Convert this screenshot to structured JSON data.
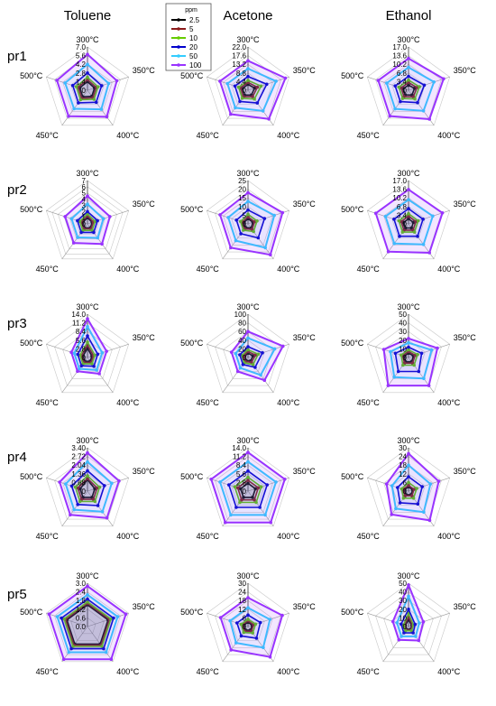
{
  "columns": [
    "Toluene",
    "Acetone",
    "Ethanol"
  ],
  "rows": [
    "pr1",
    "pr2",
    "pr3",
    "pr4",
    "pr5"
  ],
  "axes": [
    "300°C",
    "350°C",
    "400°C",
    "450°C",
    "500°C"
  ],
  "legend": {
    "title": "ppm",
    "entries": [
      "2.5",
      "5",
      "10",
      "20",
      "50",
      "100"
    ],
    "colors": [
      "#000000",
      "#8b1a1a",
      "#66cc00",
      "#0000cc",
      "#33ccff",
      "#9933ff"
    ]
  },
  "chart_data": [
    {
      "type": "radar",
      "row": "pr1",
      "column": "Toluene",
      "rmax": 7.0,
      "ticks": [
        "7.0",
        "5.6",
        "4.2",
        "2.8",
        "1.4",
        "0"
      ],
      "series": [
        {
          "name": "2.5",
          "values": [
            1.4,
            1.2,
            1.2,
            1.3,
            1.3
          ]
        },
        {
          "name": "5",
          "values": [
            1.7,
            1.5,
            1.5,
            1.6,
            1.6
          ]
        },
        {
          "name": "10",
          "values": [
            2.1,
            1.8,
            1.8,
            1.9,
            1.9
          ]
        },
        {
          "name": "20",
          "values": [
            2.8,
            2.4,
            2.4,
            2.5,
            2.5
          ]
        },
        {
          "name": "50",
          "values": [
            4.2,
            3.6,
            3.8,
            3.7,
            3.8
          ]
        },
        {
          "name": "100",
          "values": [
            5.8,
            5.0,
            5.3,
            5.2,
            5.2
          ]
        }
      ]
    },
    {
      "type": "radar",
      "row": "pr1",
      "column": "Acetone",
      "rmax": 22.0,
      "ticks": [
        "22.0",
        "17.6",
        "13.2",
        "8.8",
        "4.4",
        "0"
      ],
      "series": [
        {
          "name": "2.5",
          "values": [
            3.0,
            3.5,
            3.0,
            3.0,
            3.0
          ]
        },
        {
          "name": "5",
          "values": [
            4.0,
            5.0,
            4.0,
            4.0,
            4.0
          ]
        },
        {
          "name": "10",
          "values": [
            5.0,
            7.0,
            5.5,
            5.0,
            5.0
          ]
        },
        {
          "name": "20",
          "values": [
            7.0,
            10.0,
            8.0,
            7.0,
            7.0
          ]
        },
        {
          "name": "50",
          "values": [
            11.0,
            15.0,
            13.0,
            11.0,
            11.0
          ]
        },
        {
          "name": "100",
          "values": [
            15.0,
            20.0,
            18.0,
            15.0,
            15.0
          ]
        }
      ]
    },
    {
      "type": "radar",
      "row": "pr1",
      "column": "Ethanol",
      "rmax": 17.0,
      "ticks": [
        "17.0",
        "13.6",
        "10.2",
        "6.8",
        "3.4",
        "0"
      ],
      "series": [
        {
          "name": "2.5",
          "values": [
            2.0,
            2.5,
            2.3,
            2.2,
            2.2
          ]
        },
        {
          "name": "5",
          "values": [
            3.0,
            3.5,
            3.2,
            3.0,
            3.0
          ]
        },
        {
          "name": "10",
          "values": [
            4.0,
            4.5,
            4.2,
            4.0,
            4.0
          ]
        },
        {
          "name": "20",
          "values": [
            5.5,
            6.5,
            6.0,
            5.5,
            5.5
          ]
        },
        {
          "name": "50",
          "values": [
            9.0,
            10.5,
            10.0,
            9.0,
            9.0
          ]
        },
        {
          "name": "100",
          "values": [
            12.5,
            14.5,
            14.0,
            12.5,
            12.5
          ]
        }
      ]
    },
    {
      "type": "radar",
      "row": "pr2",
      "column": "Toluene",
      "rmax": 7,
      "ticks": [
        "7",
        "6",
        "5",
        "4",
        "3",
        "2",
        "1",
        "0"
      ],
      "series": [
        {
          "name": "2.5",
          "values": [
            1.0,
            0.8,
            0.8,
            0.8,
            0.8
          ]
        },
        {
          "name": "5",
          "values": [
            1.3,
            1.0,
            1.0,
            1.0,
            1.0
          ]
        },
        {
          "name": "10",
          "values": [
            1.6,
            1.3,
            1.3,
            1.3,
            1.3
          ]
        },
        {
          "name": "20",
          "values": [
            2.0,
            1.7,
            1.7,
            1.7,
            1.7
          ]
        },
        {
          "name": "50",
          "values": [
            3.2,
            2.7,
            2.8,
            2.7,
            2.7
          ]
        },
        {
          "name": "100",
          "values": [
            4.5,
            3.8,
            4.0,
            3.8,
            3.8
          ]
        }
      ]
    },
    {
      "type": "radar",
      "row": "pr2",
      "column": "Acetone",
      "rmax": 25,
      "ticks": [
        "25",
        "20",
        "15",
        "10",
        "5",
        "0"
      ],
      "series": [
        {
          "name": "2.5",
          "values": [
            3.0,
            3.0,
            3.0,
            2.5,
            2.5
          ]
        },
        {
          "name": "5",
          "values": [
            4.0,
            4.0,
            4.0,
            3.5,
            3.5
          ]
        },
        {
          "name": "10",
          "values": [
            5.5,
            5.5,
            5.5,
            4.5,
            4.5
          ]
        },
        {
          "name": "20",
          "values": [
            8.0,
            10.0,
            10.0,
            7.0,
            7.0
          ]
        },
        {
          "name": "50",
          "values": [
            13.0,
            16.0,
            17.0,
            12.0,
            12.0
          ]
        },
        {
          "name": "100",
          "values": [
            18.0,
            21.0,
            22.0,
            17.0,
            17.0
          ]
        }
      ]
    },
    {
      "type": "radar",
      "row": "pr2",
      "column": "Ethanol",
      "rmax": 17.0,
      "ticks": [
        "17.0",
        "13.6",
        "10.2",
        "6.8",
        "3.4",
        "0"
      ],
      "series": [
        {
          "name": "2.5",
          "values": [
            2.0,
            2.0,
            2.0,
            2.0,
            2.0
          ]
        },
        {
          "name": "5",
          "values": [
            3.0,
            3.0,
            3.0,
            3.0,
            3.0
          ]
        },
        {
          "name": "10",
          "values": [
            4.0,
            4.0,
            4.0,
            4.0,
            4.0
          ]
        },
        {
          "name": "20",
          "values": [
            6.0,
            6.0,
            6.0,
            6.0,
            6.0
          ]
        },
        {
          "name": "50",
          "values": [
            9.5,
            10.0,
            10.0,
            9.5,
            9.5
          ]
        },
        {
          "name": "100",
          "values": [
            13.5,
            14.0,
            14.0,
            13.5,
            13.5
          ]
        }
      ]
    },
    {
      "type": "radar",
      "row": "pr3",
      "column": "Toluene",
      "rmax": 14.0,
      "ticks": [
        "14.0",
        "11.2",
        "8.4",
        "5.6",
        "2.8",
        "0"
      ],
      "series": [
        {
          "name": "2.5",
          "values": [
            3.0,
            1.5,
            1.5,
            1.5,
            1.5
          ]
        },
        {
          "name": "5",
          "values": [
            4.0,
            2.0,
            2.0,
            2.0,
            2.0
          ]
        },
        {
          "name": "10",
          "values": [
            5.0,
            2.5,
            2.5,
            2.5,
            2.5
          ]
        },
        {
          "name": "20",
          "values": [
            7.0,
            3.5,
            3.5,
            3.3,
            3.3
          ]
        },
        {
          "name": "50",
          "values": [
            10.0,
            5.0,
            5.0,
            4.5,
            4.5
          ]
        },
        {
          "name": "100",
          "values": [
            12.5,
            6.5,
            6.5,
            5.5,
            5.5
          ]
        }
      ]
    },
    {
      "type": "radar",
      "row": "pr3",
      "column": "Acetone",
      "rmax": 100,
      "ticks": [
        "100",
        "80",
        "60",
        "40",
        "20",
        "0"
      ],
      "series": [
        {
          "name": "2.5",
          "values": [
            10,
            12,
            10,
            8,
            8
          ]
        },
        {
          "name": "5",
          "values": [
            14,
            18,
            14,
            11,
            11
          ]
        },
        {
          "name": "10",
          "values": [
            18,
            25,
            20,
            15,
            15
          ]
        },
        {
          "name": "20",
          "values": [
            25,
            35,
            28,
            20,
            20
          ]
        },
        {
          "name": "50",
          "values": [
            45,
            65,
            50,
            30,
            30
          ]
        },
        {
          "name": "100",
          "values": [
            60,
            85,
            65,
            40,
            40
          ]
        }
      ]
    },
    {
      "type": "radar",
      "row": "pr3",
      "column": "Ethanol",
      "rmax": 50,
      "ticks": [
        "50",
        "40",
        "30",
        "20",
        "10",
        "0"
      ],
      "series": [
        {
          "name": "2.5",
          "values": [
            5,
            6,
            6,
            6,
            5
          ]
        },
        {
          "name": "5",
          "values": [
            7,
            8,
            8,
            8,
            7
          ]
        },
        {
          "name": "10",
          "values": [
            9,
            11,
            11,
            11,
            9
          ]
        },
        {
          "name": "20",
          "values": [
            12,
            16,
            20,
            20,
            16
          ]
        },
        {
          "name": "50",
          "values": [
            17,
            28,
            30,
            28,
            22
          ]
        },
        {
          "name": "100",
          "values": [
            22,
            35,
            40,
            40,
            30
          ]
        }
      ]
    },
    {
      "type": "radar",
      "row": "pr4",
      "column": "Toluene",
      "rmax": 3.4,
      "ticks": [
        "3.40",
        "2.72",
        "2.04",
        "1.36",
        "0.68",
        "0"
      ],
      "series": [
        {
          "name": "2.5",
          "values": [
            0.9,
            0.6,
            0.6,
            0.6,
            0.6
          ]
        },
        {
          "name": "5",
          "values": [
            1.0,
            0.8,
            0.8,
            0.8,
            0.8
          ]
        },
        {
          "name": "10",
          "values": [
            1.2,
            1.0,
            1.0,
            1.0,
            1.0
          ]
        },
        {
          "name": "20",
          "values": [
            1.6,
            1.4,
            1.4,
            1.3,
            1.3
          ]
        },
        {
          "name": "50",
          "values": [
            2.3,
            2.0,
            2.0,
            1.8,
            1.8
          ]
        },
        {
          "name": "100",
          "values": [
            3.0,
            2.6,
            2.6,
            2.3,
            2.3
          ]
        }
      ]
    },
    {
      "type": "radar",
      "row": "pr4",
      "column": "Acetone",
      "rmax": 14.0,
      "ticks": [
        "14.0",
        "11.2",
        "8.4",
        "5.6",
        "2.8",
        "0"
      ],
      "series": [
        {
          "name": "2.5",
          "values": [
            2.5,
            2.5,
            2.5,
            2.5,
            2.5
          ]
        },
        {
          "name": "5",
          "values": [
            3.5,
            3.5,
            3.5,
            3.5,
            3.5
          ]
        },
        {
          "name": "10",
          "values": [
            4.5,
            4.5,
            4.5,
            4.5,
            4.5
          ]
        },
        {
          "name": "20",
          "values": [
            6.5,
            6.5,
            6.5,
            6.5,
            6.5
          ]
        },
        {
          "name": "50",
          "values": [
            9.5,
            9.5,
            9.5,
            9.5,
            9.5
          ]
        },
        {
          "name": "100",
          "values": [
            12.5,
            12.5,
            12.5,
            12.5,
            12.5
          ]
        }
      ]
    },
    {
      "type": "radar",
      "row": "pr4",
      "column": "Ethanol",
      "rmax": 30,
      "ticks": [
        "30",
        "24",
        "18",
        "12",
        "6",
        "0"
      ],
      "series": [
        {
          "name": "2.5",
          "values": [
            3,
            3,
            3,
            3,
            3
          ]
        },
        {
          "name": "5",
          "values": [
            4,
            4,
            4,
            4,
            4
          ]
        },
        {
          "name": "10",
          "values": [
            6,
            6,
            6,
            6,
            5
          ]
        },
        {
          "name": "20",
          "values": [
            10,
            10,
            11,
            10,
            8
          ]
        },
        {
          "name": "50",
          "values": [
            18,
            16,
            18,
            15,
            12
          ]
        },
        {
          "name": "100",
          "values": [
            26,
            22,
            25,
            20,
            16
          ]
        }
      ]
    },
    {
      "type": "radar",
      "row": "pr5",
      "column": "Toluene",
      "rmax": 3.0,
      "ticks": [
        "3.0",
        "2.4",
        "1.8",
        "1.2",
        "0.6",
        "0.0"
      ],
      "series": [
        {
          "name": "2.5",
          "values": [
            1.5,
            1.5,
            1.5,
            1.5,
            1.5
          ]
        },
        {
          "name": "5",
          "values": [
            1.6,
            1.6,
            1.6,
            1.6,
            1.6
          ]
        },
        {
          "name": "10",
          "values": [
            1.7,
            1.7,
            1.7,
            1.7,
            1.7
          ]
        },
        {
          "name": "20",
          "values": [
            1.9,
            1.9,
            1.9,
            1.9,
            1.9
          ]
        },
        {
          "name": "50",
          "values": [
            2.2,
            2.2,
            2.2,
            2.2,
            2.2
          ]
        },
        {
          "name": "100",
          "values": [
            2.8,
            2.8,
            2.8,
            2.8,
            2.8
          ]
        }
      ]
    },
    {
      "type": "radar",
      "row": "pr5",
      "column": "Acetone",
      "rmax": 30,
      "ticks": [
        "30",
        "24",
        "18",
        "12",
        "6",
        "0"
      ],
      "series": [
        {
          "name": "2.5",
          "values": [
            3.0,
            3.0,
            3.0,
            3.0,
            3.0
          ]
        },
        {
          "name": "5",
          "values": [
            4.0,
            4.0,
            4.0,
            4.0,
            4.0
          ]
        },
        {
          "name": "10",
          "values": [
            5.0,
            5.5,
            5.5,
            5.0,
            5.0
          ]
        },
        {
          "name": "20",
          "values": [
            8.0,
            9.0,
            10.0,
            8.0,
            8.0
          ]
        },
        {
          "name": "50",
          "values": [
            13.0,
            16.0,
            18.0,
            14.0,
            13.0
          ]
        },
        {
          "name": "100",
          "values": [
            20.0,
            25.0,
            26.0,
            20.0,
            20.0
          ]
        }
      ]
    },
    {
      "type": "radar",
      "row": "pr5",
      "column": "Ethanol",
      "rmax": 50,
      "ticks": [
        "50",
        "40",
        "30",
        "20",
        "10",
        "0"
      ],
      "series": [
        {
          "name": "2.5",
          "values": [
            8,
            4,
            4,
            4,
            4
          ]
        },
        {
          "name": "5",
          "values": [
            11,
            5,
            5,
            5,
            5
          ]
        },
        {
          "name": "10",
          "values": [
            15,
            6,
            6,
            6,
            6
          ]
        },
        {
          "name": "20",
          "values": [
            20,
            8,
            9,
            9,
            9
          ]
        },
        {
          "name": "50",
          "values": [
            35,
            13,
            14,
            14,
            14
          ]
        },
        {
          "name": "100",
          "values": [
            48,
            18,
            20,
            19,
            19
          ]
        }
      ]
    }
  ]
}
